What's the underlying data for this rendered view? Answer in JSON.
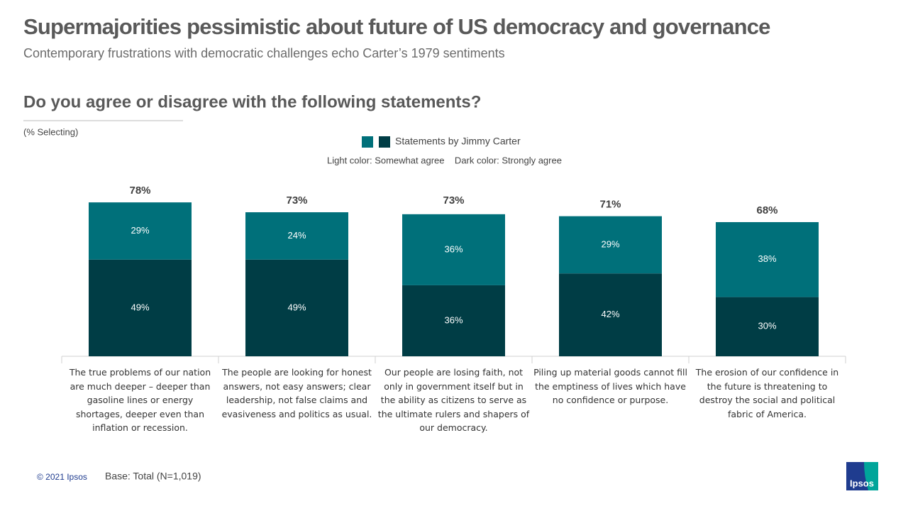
{
  "chart_data": {
    "type": "stacked_bar",
    "title": "Supermajorities pessimistic about future of US democracy and governance",
    "subtitle": "Contemporary frustrations with democratic challenges echo Carter’s 1979 sentiments",
    "question": "Do you agree or disagree with the following statements?",
    "axis_note": "(% Selecting)",
    "legend": {
      "label": "Statements by Jimmy Carter",
      "note": "Light color: Somewhat agree    Dark color: Strongly agree"
    },
    "categories": [
      "The true problems of our nation are much deeper – deeper than gasoline lines or energy shortages, deeper even than inflation or recession.",
      "The people are looking for honest answers, not easy answers; clear leadership, not false claims and evasiveness and politics as usual.",
      "Our people are losing faith, not only in government itself but in the ability as citizens to serve as the ultimate rulers and shapers of our democracy.",
      "Piling up material goods cannot fill the emptiness of lives which have no confidence or purpose.",
      "The erosion of our confidence in the future is threatening to destroy the social and political fabric of America."
    ],
    "series": [
      {
        "color": "#003d45",
        "values": [
          49,
          49,
          36,
          42,
          30
        ],
        "value_labels": [
          "49%",
          "49%",
          "36%",
          "42%",
          "30%"
        ]
      },
      {
        "color": "#00707a",
        "values": [
          29,
          24,
          36,
          29,
          38
        ],
        "value_labels": [
          "29%",
          "24%",
          "36%",
          "29%",
          "38%"
        ]
      }
    ],
    "totals": [
      78,
      73,
      73,
      71,
      68
    ],
    "total_labels": [
      "78%",
      "73%",
      "73%",
      "71%",
      "68%"
    ]
  },
  "footer": {
    "copyright": "© 2021 Ipsos",
    "base": "Base: Total (N=1,019)",
    "logo": "Ipsos"
  }
}
